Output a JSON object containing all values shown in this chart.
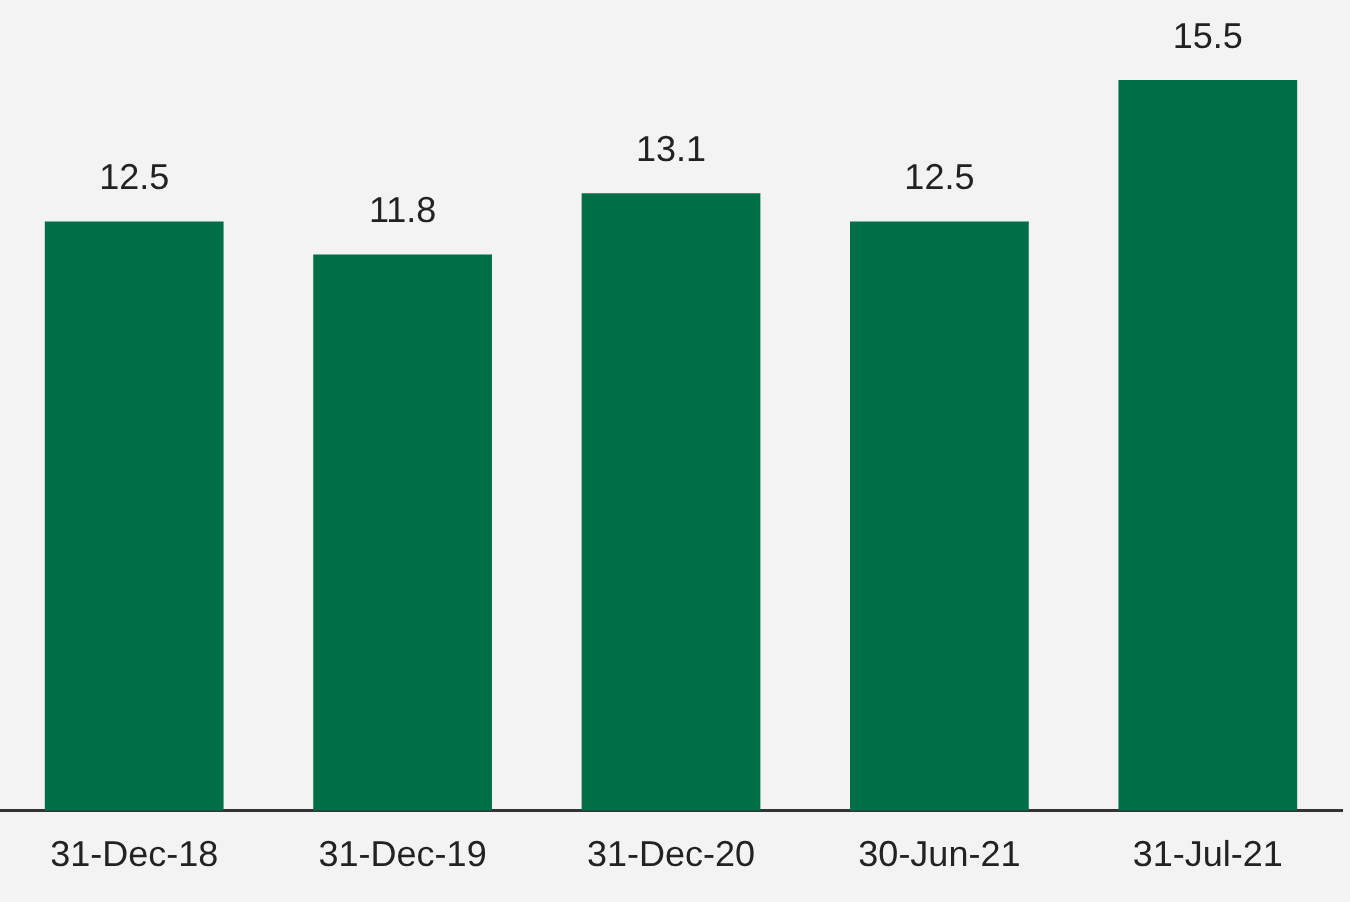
{
  "chart_data": {
    "type": "bar",
    "categories": [
      "31-Dec-18",
      "31-Dec-19",
      "31-Dec-20",
      "30-Jun-21",
      "31-Jul-21"
    ],
    "values": [
      12.5,
      11.8,
      13.1,
      12.5,
      15.5
    ],
    "color": "#006f47",
    "data_labels": true,
    "grid": false,
    "legend": false
  }
}
